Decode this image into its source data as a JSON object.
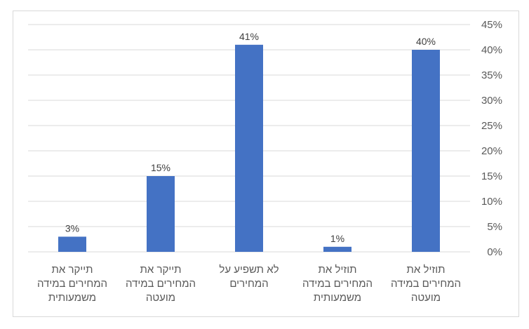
{
  "chart_data": {
    "type": "bar",
    "categories": [
      "תוזיל את המחירים במידה מועטה",
      "תוזיל את המחירים במידה משמעותית",
      "לא תשפיע על המחירים",
      "תייקר את המחירים במידה מועטה",
      "תייקר את המחירים במידה משמעותית"
    ],
    "category_lines": [
      [
        "תוזיל את",
        "המחירים במידה",
        "מועטה"
      ],
      [
        "תוזיל את",
        "המחירים במידה",
        "משמעותית"
      ],
      [
        "לא תשפיע על",
        "המחירים"
      ],
      [
        "תייקר את",
        "המחירים במידה",
        "מועטה"
      ],
      [
        "תייקר את",
        "המחירים במידה",
        "משמעותית"
      ]
    ],
    "values": [
      40,
      1,
      41,
      15,
      3
    ],
    "data_labels": [
      "40%",
      "1%",
      "41%",
      "15%",
      "3%"
    ],
    "ylim": [
      0,
      45
    ],
    "y_ticks": [
      0,
      5,
      10,
      15,
      20,
      25,
      30,
      35,
      40,
      45
    ],
    "y_tick_labels": [
      "0%",
      "5%",
      "10%",
      "15%",
      "20%",
      "25%",
      "30%",
      "35%",
      "40%",
      "45%"
    ],
    "y_axis_side": "right",
    "category_order": "right-to-left",
    "grid": true,
    "colors": {
      "bar": "#4472C4",
      "grid": "#d9d9d9",
      "text": "#595959"
    }
  }
}
